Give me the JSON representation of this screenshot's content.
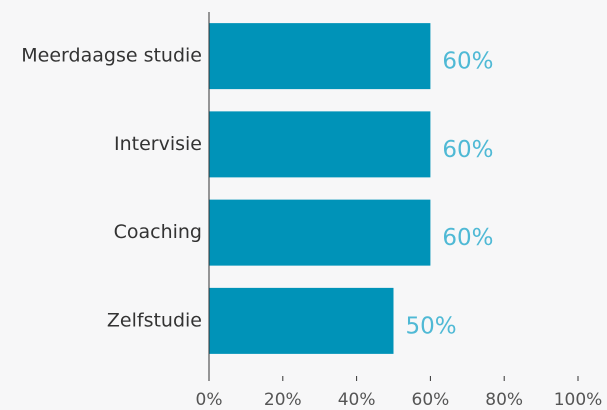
{
  "chart_data": {
    "type": "hbar",
    "categories": [
      "Meerdaagse studie",
      "Intervisie",
      "Coaching",
      "Zelfstudie"
    ],
    "values": [
      60,
      60,
      60,
      50
    ],
    "value_labels": [
      "60%",
      "60%",
      "60%",
      "50%"
    ],
    "color": "#0093b8",
    "label_color": "#4fb9d5",
    "xlim": [
      0,
      100
    ],
    "xticks": [
      {
        "value": 0,
        "label": "0%"
      },
      {
        "value": 20,
        "label": "20%"
      },
      {
        "value": 40,
        "label": "40%"
      },
      {
        "value": 60,
        "label": "60%"
      },
      {
        "value": 80,
        "label": "80%"
      },
      {
        "value": 100,
        "label": "100%"
      }
    ]
  }
}
